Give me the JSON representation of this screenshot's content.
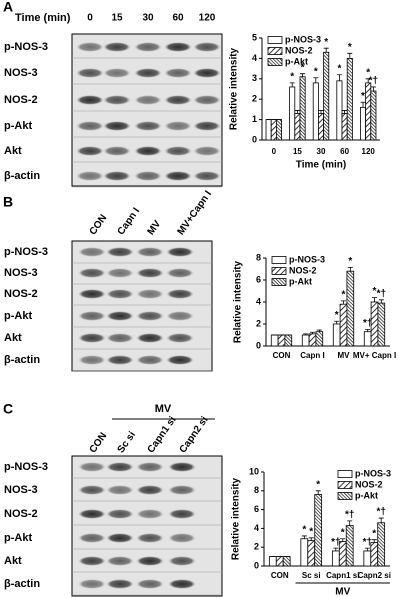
{
  "panel_labels": [
    "A",
    "B",
    "C"
  ],
  "blots": [
    {
      "header": "Time (min)",
      "lanes": [
        "0",
        "15",
        "30",
        "60",
        "120"
      ],
      "rows": [
        "p-NOS-3",
        "NOS-3",
        "NOS-2",
        "p-Akt",
        "Akt",
        "β-actin"
      ]
    },
    {
      "lanes": [
        "CON",
        "Capn I",
        "MV",
        "MV+Capn I"
      ],
      "rows": [
        "p-NOS-3",
        "NOS-3",
        "NOS-2",
        "p-Akt",
        "Akt",
        "β-actin"
      ]
    },
    {
      "header": "MV",
      "lanes": [
        "CON",
        "Sc si",
        "Capn1 si",
        "Capn2 si"
      ],
      "rows": [
        "p-NOS-3",
        "NOS-3",
        "NOS-2",
        "p-Akt",
        "Akt",
        "β-actin"
      ]
    }
  ],
  "chart_data": [
    {
      "type": "bar",
      "ylabel": "Relative intensity",
      "xlabel": "Time (min)",
      "categories": [
        "0",
        "15",
        "30",
        "60",
        "120"
      ],
      "ylim": [
        0,
        5
      ],
      "yticks": [
        0,
        1,
        2,
        3,
        4,
        5
      ],
      "legend": "upper left",
      "series": [
        {
          "name": "p-NOS-3",
          "fill": "white",
          "values": [
            1,
            2.6,
            2.8,
            2.9,
            1.6
          ],
          "errors": [
            0,
            0.2,
            0.25,
            0.3,
            0.25
          ],
          "significance": [
            null,
            "*",
            "*",
            "*",
            "*"
          ]
        },
        {
          "name": "NOS-2",
          "fill": "sparse-hatch",
          "values": [
            1,
            1.3,
            1.3,
            1.3,
            2.8
          ],
          "errors": [
            0,
            0.15,
            0.15,
            0.15,
            0.2
          ],
          "significance": [
            null,
            null,
            null,
            null,
            "*"
          ]
        },
        {
          "name": "p-Akt",
          "fill": "dense-hatch",
          "values": [
            1,
            3.1,
            4.3,
            4.0,
            2.4
          ],
          "errors": [
            0,
            0.15,
            0.2,
            0.25,
            0.2
          ],
          "significance": [
            null,
            "*",
            "*",
            "*",
            "*†"
          ]
        }
      ]
    },
    {
      "type": "bar",
      "ylabel": "Relative intensity",
      "categories": [
        "CON",
        "Capn I",
        "MV",
        "MV+ Capn I"
      ],
      "ylim": [
        0,
        8
      ],
      "yticks": [
        0,
        2,
        4,
        6,
        8
      ],
      "legend": "upper left",
      "series": [
        {
          "name": "p-NOS-3",
          "fill": "white",
          "values": [
            1,
            1.0,
            2.0,
            1.3
          ],
          "errors": [
            0,
            0.1,
            0.25,
            0.2
          ],
          "significance": [
            null,
            null,
            "*",
            "*†"
          ]
        },
        {
          "name": "NOS-2",
          "fill": "sparse-hatch",
          "values": [
            1,
            1.1,
            3.8,
            4.0
          ],
          "errors": [
            0,
            0.15,
            0.3,
            0.4
          ],
          "significance": [
            null,
            null,
            "*",
            "*"
          ]
        },
        {
          "name": "p-Akt",
          "fill": "dense-hatch",
          "values": [
            1,
            1.3,
            6.8,
            3.9
          ],
          "errors": [
            0,
            0.15,
            0.35,
            0.3
          ],
          "significance": [
            null,
            null,
            "*",
            "*†"
          ]
        }
      ]
    },
    {
      "type": "bar",
      "ylabel": "Relative intensity",
      "xlabel": "MV",
      "categories": [
        "CON",
        "Sc si",
        "Capn1 si",
        "Capn2 si"
      ],
      "ylim": [
        0,
        10
      ],
      "yticks": [
        0,
        2,
        4,
        6,
        8,
        10
      ],
      "legend": "upper right",
      "series": [
        {
          "name": "p-NOS-3",
          "fill": "white",
          "values": [
            1,
            2.9,
            1.6,
            1.6
          ],
          "errors": [
            0,
            0.3,
            0.3,
            0.3
          ],
          "significance": [
            null,
            "*",
            "*†",
            "*†"
          ]
        },
        {
          "name": "NOS-2",
          "fill": "sparse-hatch",
          "values": [
            1,
            2.7,
            2.6,
            2.5
          ],
          "errors": [
            0,
            0.3,
            0.3,
            0.3
          ],
          "significance": [
            null,
            "*",
            "*",
            "*"
          ]
        },
        {
          "name": "p-Akt",
          "fill": "dense-hatch",
          "values": [
            1,
            7.6,
            4.3,
            4.6
          ],
          "errors": [
            0,
            0.4,
            0.5,
            0.5
          ],
          "significance": [
            null,
            "*",
            "*†",
            "*†"
          ]
        }
      ]
    }
  ]
}
